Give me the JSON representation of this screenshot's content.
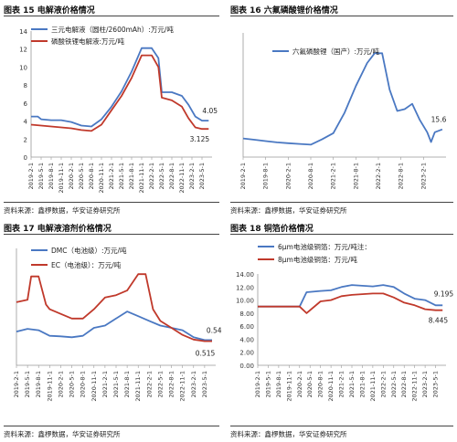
{
  "figures": [
    {
      "title": "图表 15 电解液价格情况",
      "source": "资料来源：鑫椤数据，华安证券研究所"
    },
    {
      "title": "图表 16 六氟磷酸锂价格情况",
      "source": "资料来源：鑫椤数据，华安证券研究所"
    },
    {
      "title": "图表 17 电解液溶剂价格情况",
      "source": "资料来源：鑫椤数据，华安证券研究所"
    },
    {
      "title": "图表 18 铜箔价格情况",
      "source": "资料来源：鑫椤数据，华安证券研究所"
    }
  ],
  "colors": {
    "blue": "#4a78c2",
    "red": "#c0392b",
    "axis": "#999999"
  },
  "chart_data": [
    {
      "type": "line",
      "title": "",
      "xlabel": "",
      "ylabel": "",
      "x": [
        "2019-2-1",
        "2019-5-1",
        "2019-8-1",
        "2019-11-1",
        "2020-2-1",
        "2020-5-1",
        "2020-8-1",
        "2020-11-1",
        "2021-2-1",
        "2021-5-1",
        "2021-8-1",
        "2021-11-1",
        "2022-2-1",
        "2022-5-1",
        "2022-8-1",
        "2022-11-1",
        "2023-2-1",
        "2023-5-1"
      ],
      "xlim": [
        "2019-2-1",
        "2023-8-1"
      ],
      "ylim": [
        0,
        14
      ],
      "legend_position": "top",
      "series": [
        {
          "name": "三元电解液（圆柱/2600mAh）:万元/吨",
          "color": "#4a78c2",
          "points": [
            [
              "2019-2-1",
              4.5
            ],
            [
              "2019-4-1",
              4.5
            ],
            [
              "2019-5-1",
              4.2
            ],
            [
              "2019-8-1",
              4.1
            ],
            [
              "2019-11-1",
              4.1
            ],
            [
              "2020-2-1",
              3.9
            ],
            [
              "2020-5-1",
              3.5
            ],
            [
              "2020-8-1",
              3.4
            ],
            [
              "2020-11-1",
              4.2
            ],
            [
              "2021-2-1",
              5.6
            ],
            [
              "2021-5-1",
              7.3
            ],
            [
              "2021-8-1",
              9.5
            ],
            [
              "2021-11-1",
              12.1
            ],
            [
              "2022-2-1",
              12.1
            ],
            [
              "2022-4-1",
              11.0
            ],
            [
              "2022-5-1",
              7.2
            ],
            [
              "2022-8-1",
              7.2
            ],
            [
              "2022-11-1",
              6.8
            ],
            [
              "2023-1-1",
              5.8
            ],
            [
              "2023-3-1",
              4.5
            ],
            [
              "2023-5-1",
              4.05
            ],
            [
              "2023-7-1",
              4.05
            ]
          ]
        },
        {
          "name": "磷酸铁锂电解液:万元/吨",
          "color": "#c0392b",
          "points": [
            [
              "2019-2-1",
              3.6
            ],
            [
              "2019-5-1",
              3.5
            ],
            [
              "2019-8-1",
              3.4
            ],
            [
              "2019-11-1",
              3.3
            ],
            [
              "2020-2-1",
              3.2
            ],
            [
              "2020-5-1",
              3.0
            ],
            [
              "2020-8-1",
              2.9
            ],
            [
              "2020-11-1",
              3.6
            ],
            [
              "2021-2-1",
              5.2
            ],
            [
              "2021-5-1",
              6.8
            ],
            [
              "2021-8-1",
              8.8
            ],
            [
              "2021-11-1",
              11.3
            ],
            [
              "2022-2-1",
              11.3
            ],
            [
              "2022-4-1",
              10.0
            ],
            [
              "2022-5-1",
              6.6
            ],
            [
              "2022-8-1",
              6.3
            ],
            [
              "2022-11-1",
              5.6
            ],
            [
              "2023-1-1",
              4.3
            ],
            [
              "2023-3-1",
              3.3
            ],
            [
              "2023-5-1",
              3.125
            ],
            [
              "2023-7-1",
              3.125
            ]
          ]
        }
      ],
      "annotations": [
        {
          "text": "4.05",
          "x": "2023-4-1",
          "y": 4.05
        },
        {
          "text": "3.125",
          "x": "2023-3-1",
          "y": 3.125
        }
      ]
    },
    {
      "type": "line",
      "title": "",
      "xlabel": "",
      "ylabel": "",
      "x": [
        "2019-2-1",
        "2019-8-1",
        "2020-2-1",
        "2020-8-1",
        "2021-2-1",
        "2021-8-1",
        "2022-2-1",
        "2022-8-1",
        "2023-2-1"
      ],
      "xlim": [
        "2019-2-1",
        "2023-8-1"
      ],
      "ylim": [
        0,
        70
      ],
      "legend_position": "top",
      "series": [
        {
          "name": "六氟磷酸锂（国产）:万元/吨",
          "color": "#4a78c2",
          "points": [
            [
              "2019-2-1",
              10.5
            ],
            [
              "2019-5-1",
              9.8
            ],
            [
              "2019-8-1",
              9.0
            ],
            [
              "2019-11-1",
              8.3
            ],
            [
              "2020-2-1",
              7.8
            ],
            [
              "2020-5-1",
              7.4
            ],
            [
              "2020-8-1",
              7.0
            ],
            [
              "2020-11-1",
              10.0
            ],
            [
              "2021-2-1",
              13.5
            ],
            [
              "2021-5-1",
              25
            ],
            [
              "2021-8-1",
              40
            ],
            [
              "2021-11-1",
              53
            ],
            [
              "2022-1-1",
              58.5
            ],
            [
              "2022-3-1",
              58.5
            ],
            [
              "2022-5-1",
              38
            ],
            [
              "2022-7-1",
              26
            ],
            [
              "2022-9-1",
              27
            ],
            [
              "2022-11-1",
              30
            ],
            [
              "2023-1-1",
              21
            ],
            [
              "2023-3-1",
              14
            ],
            [
              "2023-4-1",
              8.5
            ],
            [
              "2023-5-1",
              14
            ],
            [
              "2023-7-1",
              15.6
            ]
          ]
        }
      ],
      "annotations": [
        {
          "text": "15.6",
          "x": "2023-5-1",
          "y": 15.6
        }
      ]
    },
    {
      "type": "line",
      "title": "",
      "xlabel": "",
      "ylabel": "",
      "x": [
        "2019-2-1",
        "2019-5-1",
        "2019-8-1",
        "2019-11-1",
        "2020-2-1",
        "2020-5-1",
        "2020-8-1",
        "2020-11-1",
        "2021-2-1",
        "2021-5-1",
        "2021-8-1",
        "2021-11-1",
        "2022-2-1",
        "2022-5-1",
        "2022-8-1",
        "2022-11-1",
        "2023-2-1",
        "2023-5-1"
      ],
      "xlim": [
        "2019-2-1",
        "2023-8-1"
      ],
      "ylim": [
        0,
        2.5
      ],
      "legend_position": "top",
      "series": [
        {
          "name": "DMC（电池级）:万元/吨",
          "color": "#4a78c2",
          "points": [
            [
              "2019-2-1",
              0.72
            ],
            [
              "2019-5-1",
              0.78
            ],
            [
              "2019-8-1",
              0.75
            ],
            [
              "2019-11-1",
              0.63
            ],
            [
              "2020-2-1",
              0.62
            ],
            [
              "2020-5-1",
              0.6
            ],
            [
              "2020-8-1",
              0.63
            ],
            [
              "2020-11-1",
              0.8
            ],
            [
              "2021-2-1",
              0.85
            ],
            [
              "2021-5-1",
              1.0
            ],
            [
              "2021-8-1",
              1.15
            ],
            [
              "2021-11-1",
              1.05
            ],
            [
              "2022-2-1",
              0.95
            ],
            [
              "2022-5-1",
              0.85
            ],
            [
              "2022-8-1",
              0.8
            ],
            [
              "2022-11-1",
              0.75
            ],
            [
              "2023-2-1",
              0.6
            ],
            [
              "2023-5-1",
              0.54
            ],
            [
              "2023-7-1",
              0.54
            ]
          ]
        },
        {
          "name": "EC（电池级）：万元/吨",
          "color": "#c0392b",
          "points": [
            [
              "2019-2-1",
              1.35
            ],
            [
              "2019-5-1",
              1.4
            ],
            [
              "2019-6-1",
              1.9
            ],
            [
              "2019-8-1",
              1.9
            ],
            [
              "2019-10-1",
              1.3
            ],
            [
              "2019-11-1",
              1.2
            ],
            [
              "2020-2-1",
              1.1
            ],
            [
              "2020-5-1",
              1.0
            ],
            [
              "2020-8-1",
              1.0
            ],
            [
              "2020-11-1",
              1.2
            ],
            [
              "2021-2-1",
              1.45
            ],
            [
              "2021-5-1",
              1.5
            ],
            [
              "2021-8-1",
              1.6
            ],
            [
              "2021-11-1",
              1.95
            ],
            [
              "2022-1-1",
              1.95
            ],
            [
              "2022-3-1",
              1.2
            ],
            [
              "2022-5-1",
              0.95
            ],
            [
              "2022-8-1",
              0.8
            ],
            [
              "2022-11-1",
              0.65
            ],
            [
              "2023-2-1",
              0.55
            ],
            [
              "2023-5-1",
              0.515
            ],
            [
              "2023-7-1",
              0.515
            ]
          ]
        }
      ],
      "annotations": [
        {
          "text": "0.54",
          "x": "2023-4-1",
          "y": 0.54
        },
        {
          "text": "0.515",
          "x": "2023-2-1",
          "y": 0.515
        }
      ]
    },
    {
      "type": "line",
      "title": "",
      "xlabel": "",
      "ylabel": "",
      "x": [
        "2019-2-1",
        "2019-5-1",
        "2019-8-1",
        "2019-11-1",
        "2020-2-1",
        "2020-5-1",
        "2020-8-1",
        "2020-11-1",
        "2021-2-1",
        "2021-5-1",
        "2021-8-1",
        "2021-11-1",
        "2022-2-1",
        "2022-5-1",
        "2022-8-1",
        "2022-11-1",
        "2023-2-1",
        "2023-5-1"
      ],
      "xlim": [
        "2019-2-1",
        "2023-8-1"
      ],
      "ylim": [
        0,
        14
      ],
      "y_ticks": [
        "0.00",
        "2.00",
        "4.00",
        "6.00",
        "8.00",
        "10.00",
        "12.00",
        "14.00"
      ],
      "legend_position": "top",
      "series": [
        {
          "name": "6μm电池级铜箔：万元/吨注：",
          "color": "#4a78c2",
          "points": [
            [
              "2019-2-1",
              9.0
            ],
            [
              "2019-11-1",
              9.0
            ],
            [
              "2020-2-1",
              9.0
            ],
            [
              "2020-4-1",
              11.2
            ],
            [
              "2020-8-1",
              11.4
            ],
            [
              "2020-11-1",
              11.5
            ],
            [
              "2021-2-1",
              12.0
            ],
            [
              "2021-5-1",
              12.3
            ],
            [
              "2021-8-1",
              12.2
            ],
            [
              "2021-11-1",
              12.1
            ],
            [
              "2022-2-1",
              12.3
            ],
            [
              "2022-5-1",
              12.0
            ],
            [
              "2022-8-1",
              11.0
            ],
            [
              "2022-11-1",
              10.2
            ],
            [
              "2023-2-1",
              10.0
            ],
            [
              "2023-5-1",
              9.195
            ],
            [
              "2023-7-1",
              9.195
            ]
          ]
        },
        {
          "name": "8μm电池级铜箔：万元/吨",
          "color": "#c0392b",
          "points": [
            [
              "2019-2-1",
              9.0
            ],
            [
              "2019-11-1",
              9.0
            ],
            [
              "2020-2-1",
              9.0
            ],
            [
              "2020-4-1",
              8.0
            ],
            [
              "2020-8-1",
              9.8
            ],
            [
              "2020-11-1",
              10.0
            ],
            [
              "2021-2-1",
              10.6
            ],
            [
              "2021-5-1",
              10.8
            ],
            [
              "2021-8-1",
              10.9
            ],
            [
              "2021-11-1",
              11.0
            ],
            [
              "2022-2-1",
              11.0
            ],
            [
              "2022-5-1",
              10.4
            ],
            [
              "2022-8-1",
              9.6
            ],
            [
              "2022-11-1",
              9.2
            ],
            [
              "2023-2-1",
              8.6
            ],
            [
              "2023-5-1",
              8.445
            ],
            [
              "2023-7-1",
              8.445
            ]
          ]
        }
      ],
      "annotations": [
        {
          "text": "9.195",
          "x": "2023-4-1",
          "y": 9.195
        },
        {
          "text": "8.445",
          "x": "2023-4-1",
          "y": 8.445
        }
      ]
    }
  ]
}
